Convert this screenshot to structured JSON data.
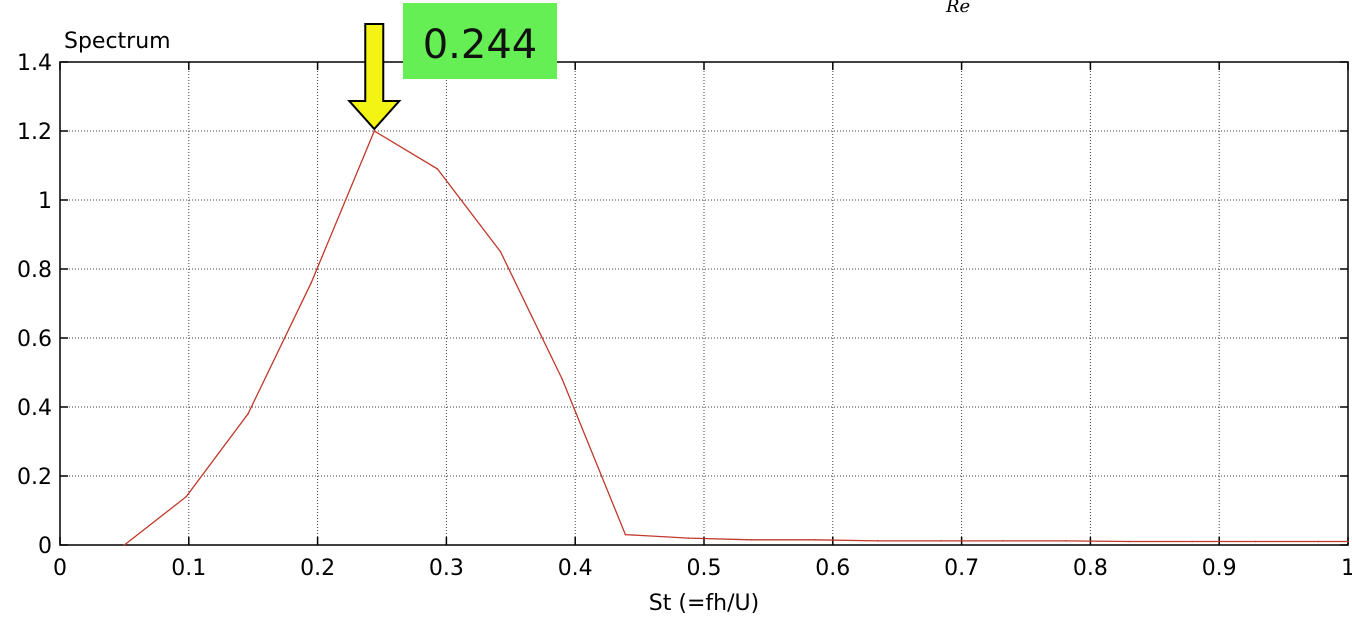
{
  "chart_data": {
    "type": "line",
    "ylabel": "Spectrum",
    "xlabel": "St (=fh/U)",
    "xlim": [
      0,
      1
    ],
    "ylim": [
      0,
      1.4
    ],
    "grid": true,
    "x_ticks": [
      "0",
      "0.1",
      "0.2",
      "0.3",
      "0.4",
      "0.5",
      "0.6",
      "0.7",
      "0.8",
      "0.9",
      "1"
    ],
    "y_ticks": [
      "0",
      "0.2",
      "0.4",
      "0.6",
      "0.8",
      "1",
      "1.2",
      "1.4"
    ],
    "series": [
      {
        "color": "#c0392b",
        "x": [
          0.05,
          0.098,
          0.146,
          0.195,
          0.244,
          0.293,
          0.342,
          0.39,
          0.439,
          0.488,
          0.537,
          0.586,
          0.635,
          0.684,
          0.732,
          0.781,
          0.83,
          0.879,
          0.928,
          0.977,
          1.0
        ],
        "values": [
          0.0,
          0.14,
          0.38,
          0.76,
          1.2,
          1.09,
          0.85,
          0.48,
          0.03,
          0.02,
          0.015,
          0.015,
          0.012,
          0.012,
          0.012,
          0.012,
          0.01,
          0.01,
          0.01,
          0.01,
          0.01
        ]
      }
    ],
    "annotations": [
      {
        "text": "0.244",
        "x": 0.244,
        "y": 1.2,
        "background": "#66ee55",
        "arrow_color": "#f4f414"
      }
    ]
  },
  "corner_fragment": "Re"
}
